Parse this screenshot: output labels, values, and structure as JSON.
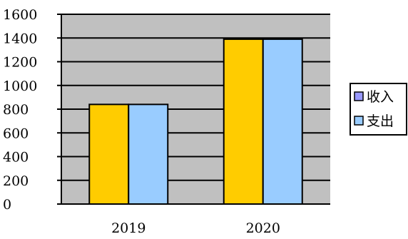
{
  "chart_data": {
    "type": "bar",
    "title": "",
    "xlabel": "",
    "ylabel": "",
    "categories": [
      "2019",
      "2020"
    ],
    "series": [
      {
        "name": "收入",
        "values": [
          840,
          1390
        ],
        "bar_color": "#ffcc00",
        "legend_swatch_color": "#9999ff"
      },
      {
        "name": "支出",
        "values": [
          840,
          1390
        ],
        "bar_color": "#99ccff",
        "legend_swatch_color": "#99ccff"
      }
    ],
    "ylim": [
      0,
      1600
    ],
    "yticks": [
      "0",
      "200",
      "400",
      "600",
      "800",
      "1000",
      "1200",
      "1400",
      "1600"
    ],
    "grid": true,
    "legend_position": "right",
    "plot_background": "#c0c0c0"
  }
}
